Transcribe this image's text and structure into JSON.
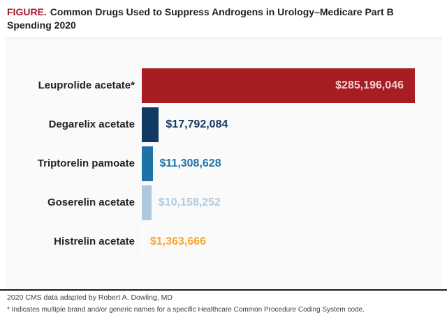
{
  "figure": {
    "label": "FIGURE.",
    "title_line1": "Common Drugs Used to Suppress Androgens in Urology–Medicare Part B",
    "title_line2": "Spending 2020"
  },
  "chart_data": {
    "type": "bar",
    "orientation": "horizontal",
    "title": "Common Drugs Used to Suppress Androgens in Urology–Medicare Part B Spending 2020",
    "categories": [
      "Leuprolide acetate*",
      "Degarelix acetate",
      "Triptorelin pamoate",
      "Goserelin acetate",
      "Histrelin acetate"
    ],
    "values": [
      285196046,
      17792084,
      11308628,
      10158252,
      1363666
    ],
    "value_labels": [
      "$285,196,046",
      "$17,792,084",
      "$11,308,628",
      "$10,158,252",
      "$1,363,666"
    ],
    "bar_colors": [
      "#a81d22",
      "#113a62",
      "#1e72a8",
      "#adc9df",
      "#ffffff"
    ],
    "value_label_colors": [
      "#edd1ce",
      "#14395e",
      "#1e72a8",
      "#afcbde",
      "#f9a72b"
    ],
    "value_label_placement": [
      "inside",
      "outside",
      "outside",
      "outside",
      "outside"
    ],
    "xlim": [
      0,
      285196046
    ],
    "grid": "off",
    "legend": "none"
  },
  "footer": {
    "source": "2020 CMS data adapted by Robert A. Dowling, MD",
    "note": "* Indicates multiple brand and/or generic names for a specific Healthcare Common Procedure Coding System code."
  },
  "colors": {
    "figure_label_red": "#a6192e",
    "title_text": "#231f20",
    "plot_background": "#fafafa",
    "plot_top_border": "#dcdcdc",
    "footer_divider": "#1a1a1a",
    "footer_text": "#404040"
  }
}
